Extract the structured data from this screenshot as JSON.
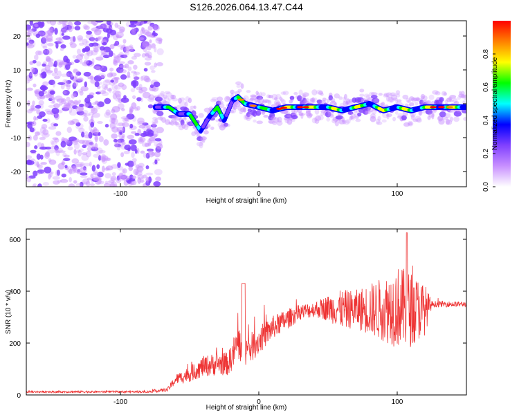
{
  "title": "S126.2026.064.13.47.C44",
  "chart_data": [
    {
      "type": "heatmap",
      "xlabel": "Height of straight line (km)",
      "ylabel": "Frequency (Hz)",
      "xlim": [
        -168,
        150
      ],
      "ylim": [
        -24.5,
        24.5
      ],
      "xticks": [
        -100,
        0,
        100
      ],
      "xtick_labels": [
        "-100",
        "0",
        "100"
      ],
      "yticks": [
        -20,
        -10,
        0,
        10,
        20
      ],
      "ytick_labels": [
        "-20",
        "-10",
        "0",
        "10",
        "20"
      ],
      "noise_region_end_km": -75,
      "signal_ridge": [
        {
          "x": -75,
          "y": -1
        },
        {
          "x": -65,
          "y": -1
        },
        {
          "x": -58,
          "y": -3
        },
        {
          "x": -50,
          "y": -3
        },
        {
          "x": -42,
          "y": -8
        },
        {
          "x": -36,
          "y": -4
        },
        {
          "x": -30,
          "y": -1
        },
        {
          "x": -25,
          "y": -5
        },
        {
          "x": -19,
          "y": 1
        },
        {
          "x": -15,
          "y": 2
        },
        {
          "x": -10,
          "y": 0
        },
        {
          "x": 0,
          "y": -1
        },
        {
          "x": 10,
          "y": -2
        },
        {
          "x": 20,
          "y": -1
        },
        {
          "x": 30,
          "y": -1
        },
        {
          "x": 40,
          "y": -1
        },
        {
          "x": 50,
          "y": -1
        },
        {
          "x": 60,
          "y": -2
        },
        {
          "x": 70,
          "y": -1
        },
        {
          "x": 80,
          "y": 0
        },
        {
          "x": 90,
          "y": -2
        },
        {
          "x": 100,
          "y": -1
        },
        {
          "x": 110,
          "y": -2
        },
        {
          "x": 120,
          "y": -1
        },
        {
          "x": 135,
          "y": -1
        },
        {
          "x": 150,
          "y": -1
        }
      ],
      "colorbar": {
        "label": "Normalized spectral amplitude",
        "range": [
          0,
          1
        ],
        "ticks": [
          0.0,
          0.2,
          0.4,
          0.6,
          0.8
        ],
        "tick_labels": [
          "0.0",
          "0.2",
          "0.4",
          "0.6",
          "0.8"
        ],
        "colors": [
          "#ffffff",
          "#c890ff",
          "#8040ff",
          "#0000ff",
          "#00ffff",
          "#00ff00",
          "#ffff00",
          "#ff8000",
          "#ff0000"
        ]
      }
    },
    {
      "type": "line",
      "xlabel": "Height of straight line (km)",
      "ylabel": "SNR (10 * v/v)",
      "xlim": [
        -168,
        150
      ],
      "ylim": [
        0,
        640
      ],
      "xticks": [
        -100,
        0,
        100
      ],
      "xtick_labels": [
        "-100",
        "0",
        "100"
      ],
      "yticks": [
        0,
        200,
        400,
        600
      ],
      "ytick_labels": [
        "0",
        "200",
        "400",
        "600"
      ],
      "series_color": "#ee3333",
      "envelope": [
        {
          "x": -168,
          "mean": 12,
          "spread": 8
        },
        {
          "x": -80,
          "mean": 12,
          "spread": 8
        },
        {
          "x": -66,
          "mean": 20,
          "spread": 15
        },
        {
          "x": -60,
          "mean": 60,
          "spread": 40
        },
        {
          "x": -50,
          "mean": 80,
          "spread": 60
        },
        {
          "x": -40,
          "mean": 110,
          "spread": 80
        },
        {
          "x": -30,
          "mean": 120,
          "spread": 90
        },
        {
          "x": -22,
          "mean": 120,
          "spread": 90
        },
        {
          "x": -15,
          "mean": 200,
          "spread": 150
        },
        {
          "x": -8,
          "mean": 170,
          "spread": 120
        },
        {
          "x": 0,
          "mean": 210,
          "spread": 110
        },
        {
          "x": 10,
          "mean": 260,
          "spread": 90
        },
        {
          "x": 20,
          "mean": 290,
          "spread": 80
        },
        {
          "x": 30,
          "mean": 320,
          "spread": 60
        },
        {
          "x": 40,
          "mean": 330,
          "spread": 60
        },
        {
          "x": 50,
          "mean": 335,
          "spread": 100
        },
        {
          "x": 60,
          "mean": 330,
          "spread": 150
        },
        {
          "x": 70,
          "mean": 330,
          "spread": 150
        },
        {
          "x": 80,
          "mean": 330,
          "spread": 200
        },
        {
          "x": 90,
          "mean": 330,
          "spread": 250
        },
        {
          "x": 100,
          "mean": 340,
          "spread": 320
        },
        {
          "x": 110,
          "mean": 330,
          "spread": 290
        },
        {
          "x": 120,
          "mean": 330,
          "spread": 200
        },
        {
          "x": 125,
          "mean": 350,
          "spread": 25
        },
        {
          "x": 150,
          "mean": 350,
          "spread": 20
        }
      ]
    }
  ]
}
